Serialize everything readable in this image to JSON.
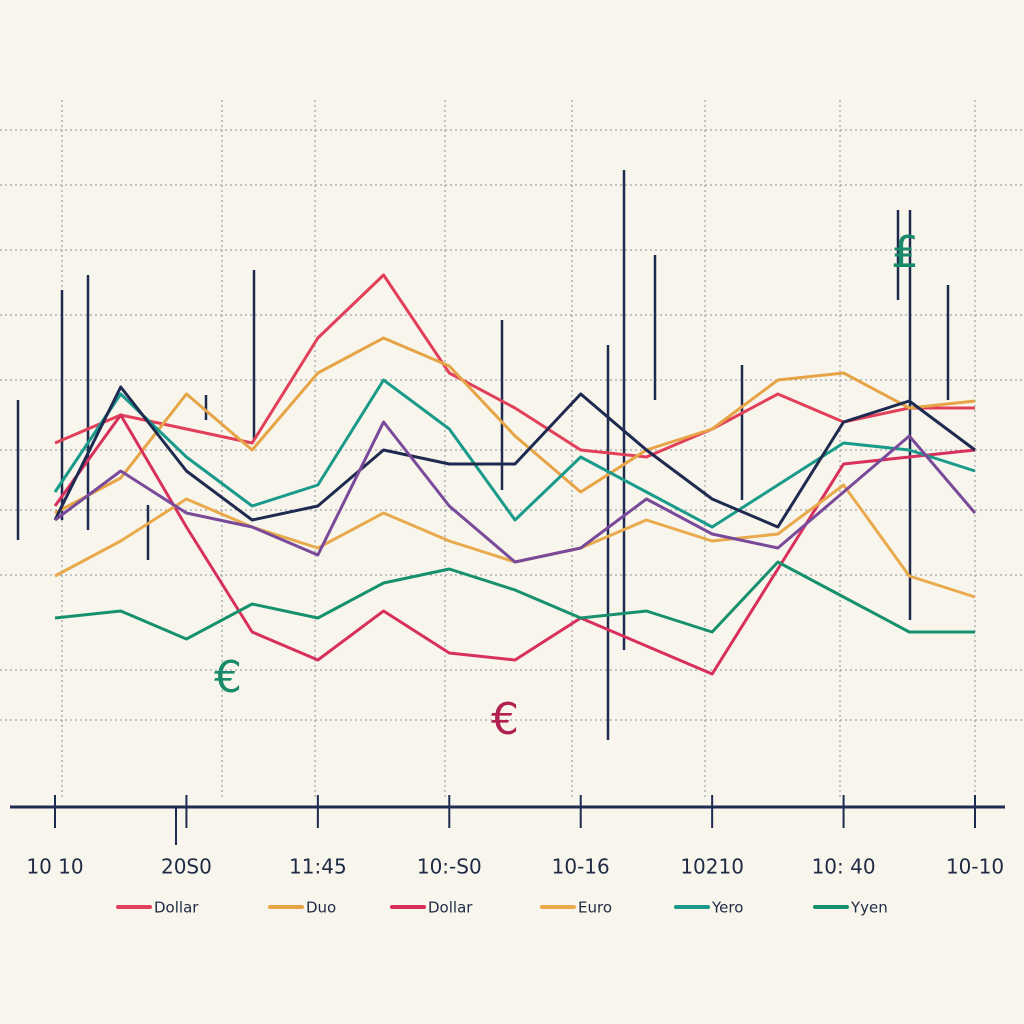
{
  "chart_data": {
    "type": "line",
    "x": [
      0,
      1,
      2,
      3,
      4,
      5,
      6,
      7,
      8,
      9,
      10,
      11,
      12,
      13,
      14
    ],
    "xlim": [
      0,
      14
    ],
    "xticks": [
      {
        "value": 0,
        "label": "10 10"
      },
      {
        "value": 2,
        "label": "20S0"
      },
      {
        "value": 4,
        "label": "11:45"
      },
      {
        "value": 6,
        "label": "10:-S0"
      },
      {
        "value": 8,
        "label": "10-16"
      },
      {
        "value": 10,
        "label": "10210"
      },
      {
        "value": 12,
        "label": "10: 40"
      },
      {
        "value": 14,
        "label": "10-10"
      }
    ],
    "ylim": [
      0,
      100
    ],
    "series": [
      {
        "name": "Dollar",
        "color": "#e2405a",
        "values": [
          51,
          55,
          53,
          51,
          66,
          75,
          61,
          56,
          50,
          49,
          53,
          58,
          54,
          56,
          56
        ]
      },
      {
        "name": "Duo",
        "color": "#e6a446",
        "values": [
          41,
          46,
          58,
          50,
          61,
          66,
          62,
          52,
          44,
          50,
          53,
          60,
          61,
          56,
          57
        ]
      },
      {
        "name": "Dollar",
        "color": "#d8305c",
        "values": [
          42,
          55,
          39,
          24,
          20,
          27,
          21,
          20,
          26,
          22,
          18,
          33,
          48,
          49,
          50
        ]
      },
      {
        "name": "Euro",
        "color": "#e8aa4c",
        "values": [
          32,
          37,
          43,
          39,
          36,
          41,
          37,
          34,
          36,
          40,
          37,
          38,
          45,
          32,
          29
        ]
      },
      {
        "name": "Yero",
        "color": "#1a9a8a",
        "values": [
          44,
          58,
          49,
          42,
          45,
          60,
          53,
          40,
          49,
          44,
          39,
          45,
          51,
          50,
          47
        ]
      },
      {
        "name": "Yyen",
        "color": "#17906e",
        "values": [
          26,
          27,
          23,
          28,
          26,
          31,
          33,
          30,
          26,
          27,
          24,
          34,
          29,
          24,
          24
        ]
      },
      {
        "color": "#1e2a50",
        "values": [
          40,
          59,
          47,
          40,
          42,
          50,
          48,
          48,
          58,
          50,
          43,
          39,
          54,
          57,
          50
        ]
      },
      {
        "color": "#7a4a9a",
        "values": [
          40,
          47,
          41,
          39,
          35,
          54,
          42,
          34,
          36,
          43,
          38,
          36,
          44,
          52,
          41
        ]
      }
    ],
    "annotations": [
      "€",
      "€",
      "₤"
    ]
  }
}
